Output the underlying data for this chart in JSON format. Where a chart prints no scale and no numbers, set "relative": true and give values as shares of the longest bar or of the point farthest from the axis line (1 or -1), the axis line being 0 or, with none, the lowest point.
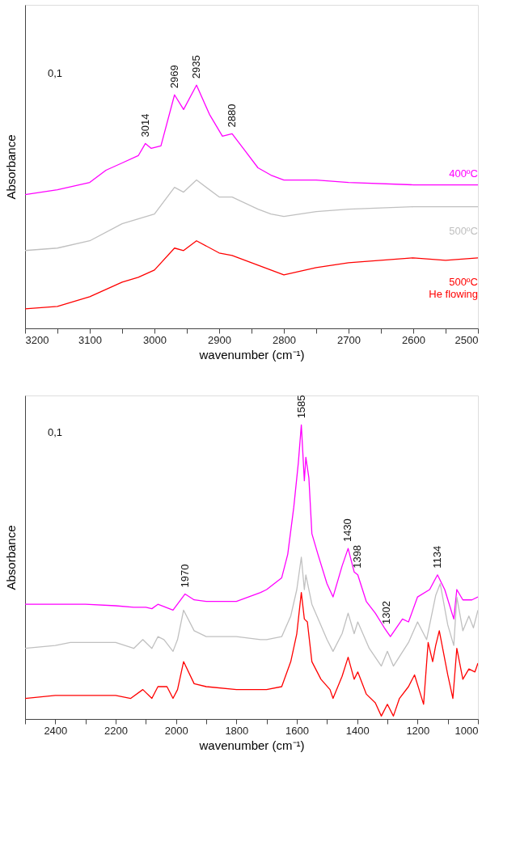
{
  "chart_data": [
    {
      "type": "line",
      "relative": true,
      "xlabel": "wavenumber (cm⁻¹)",
      "ylabel": "Absorbance",
      "tick_labels": "x",
      "grid": false,
      "xlim": [
        3200,
        2500
      ],
      "xticks": [
        3200,
        {
          "value": 3150,
          "label": null
        },
        3100,
        {
          "value": 3050,
          "label": null
        },
        3000,
        {
          "value": 2950,
          "label": null
        },
        2900,
        {
          "value": 2850,
          "label": null
        },
        2800,
        {
          "value": 2750,
          "label": null
        },
        2700,
        {
          "value": 2650,
          "label": null
        },
        2600,
        {
          "value": 2550,
          "label": null
        },
        2500
      ],
      "series": [
        {
          "name": "400ºC",
          "color": "#ff00ff",
          "x": [
            3200,
            3150,
            3100,
            3075,
            3050,
            3025,
            3014,
            3005,
            2990,
            2969,
            2955,
            2935,
            2915,
            2895,
            2880,
            2860,
            2840,
            2820,
            2800,
            2750,
            2700,
            2600,
            2550,
            2500
          ],
          "values": [
            0.55,
            0.57,
            0.6,
            0.65,
            0.68,
            0.71,
            0.76,
            0.74,
            0.75,
            0.96,
            0.9,
            1.0,
            0.88,
            0.79,
            0.8,
            0.73,
            0.66,
            0.63,
            0.61,
            0.61,
            0.6,
            0.59,
            0.59,
            0.59
          ]
        },
        {
          "name": "500ºC",
          "color": "#c0c0c0",
          "x": [
            3200,
            3150,
            3100,
            3050,
            3000,
            2969,
            2955,
            2935,
            2900,
            2880,
            2840,
            2820,
            2800,
            2750,
            2700,
            2600,
            2550,
            2500
          ],
          "values": [
            0.32,
            0.33,
            0.36,
            0.43,
            0.47,
            0.58,
            0.56,
            0.61,
            0.54,
            0.54,
            0.49,
            0.47,
            0.46,
            0.48,
            0.49,
            0.5,
            0.5,
            0.5
          ]
        },
        {
          "name": "500ºC\nHe flowing",
          "color": "#ff0000",
          "x": [
            3200,
            3150,
            3100,
            3050,
            3025,
            3000,
            2969,
            2955,
            2935,
            2900,
            2880,
            2840,
            2820,
            2800,
            2750,
            2700,
            2600,
            2550,
            2500
          ],
          "values": [
            0.08,
            0.09,
            0.13,
            0.19,
            0.21,
            0.24,
            0.33,
            0.32,
            0.36,
            0.31,
            0.3,
            0.26,
            0.24,
            0.22,
            0.25,
            0.27,
            0.29,
            0.28,
            0.29
          ]
        }
      ],
      "annotations": [
        "0,1",
        {
          "text": "3014",
          "x": 3014,
          "y": 0.76
        },
        {
          "text": "2969",
          "x": 2969,
          "y": 0.96
        },
        {
          "text": "2935",
          "x": 2935,
          "y": 1.0
        },
        {
          "text": "2880",
          "x": 2880,
          "y": 0.8
        }
      ]
    },
    {
      "type": "line",
      "relative": true,
      "xlabel": "wavenumber (cm⁻¹)",
      "ylabel": "Absorbance",
      "tick_labels": "x",
      "grid": false,
      "xlim": [
        2500,
        1000
      ],
      "xticks": [
        {
          "value": 2500,
          "label": null
        },
        2400,
        {
          "value": 2300,
          "label": null
        },
        2200,
        {
          "value": 2100,
          "label": null
        },
        2000,
        {
          "value": 1900,
          "label": null
        },
        1800,
        {
          "value": 1700,
          "label": null
        },
        1600,
        {
          "value": 1500,
          "label": null
        },
        1400,
        {
          "value": 1300,
          "label": null
        },
        1200,
        {
          "value": 1100,
          "label": null
        },
        1000
      ],
      "series": [
        {
          "color": "#ff00ff",
          "x": [
            2500,
            2400,
            2300,
            2200,
            2140,
            2100,
            2080,
            2060,
            2010,
            1970,
            1940,
            1900,
            1800,
            1720,
            1700,
            1650,
            1630,
            1610,
            1595,
            1585,
            1575,
            1570,
            1560,
            1550,
            1530,
            1500,
            1480,
            1450,
            1430,
            1410,
            1398,
            1370,
            1340,
            1310,
            1290,
            1250,
            1230,
            1200,
            1160,
            1134,
            1110,
            1080,
            1070,
            1050,
            1020,
            1000
          ],
          "values": [
            0.39,
            0.39,
            0.39,
            0.385,
            0.38,
            0.38,
            0.375,
            0.39,
            0.37,
            0.425,
            0.405,
            0.4,
            0.4,
            0.43,
            0.44,
            0.48,
            0.56,
            0.72,
            0.87,
            1.0,
            0.81,
            0.89,
            0.82,
            0.63,
            0.56,
            0.46,
            0.415,
            0.52,
            0.58,
            0.5,
            0.49,
            0.4,
            0.36,
            0.31,
            0.28,
            0.34,
            0.33,
            0.415,
            0.44,
            0.49,
            0.44,
            0.34,
            0.44,
            0.405,
            0.405,
            0.415
          ]
        },
        {
          "color": "#c0c0c0",
          "x": [
            2500,
            2400,
            2350,
            2300,
            2200,
            2140,
            2110,
            2080,
            2060,
            2040,
            2010,
            1995,
            1975,
            1940,
            1900,
            1800,
            1720,
            1700,
            1650,
            1620,
            1600,
            1585,
            1575,
            1570,
            1550,
            1500,
            1480,
            1450,
            1430,
            1410,
            1398,
            1360,
            1320,
            1300,
            1280,
            1230,
            1200,
            1170,
            1140,
            1125,
            1100,
            1080,
            1070,
            1050,
            1030,
            1015,
            1000
          ],
          "values": [
            0.24,
            0.25,
            0.26,
            0.26,
            0.26,
            0.24,
            0.27,
            0.24,
            0.28,
            0.27,
            0.23,
            0.27,
            0.37,
            0.3,
            0.28,
            0.28,
            0.27,
            0.27,
            0.28,
            0.35,
            0.44,
            0.55,
            0.44,
            0.49,
            0.39,
            0.27,
            0.23,
            0.29,
            0.36,
            0.29,
            0.33,
            0.24,
            0.18,
            0.23,
            0.18,
            0.26,
            0.33,
            0.27,
            0.42,
            0.46,
            0.32,
            0.25,
            0.415,
            0.3,
            0.35,
            0.31,
            0.37
          ]
        },
        {
          "color": "#ff0000",
          "x": [
            2500,
            2400,
            2300,
            2200,
            2150,
            2110,
            2080,
            2060,
            2030,
            2010,
            1995,
            1975,
            1940,
            1900,
            1800,
            1720,
            1700,
            1650,
            1620,
            1600,
            1585,
            1575,
            1565,
            1550,
            1520,
            1490,
            1480,
            1450,
            1430,
            1410,
            1398,
            1370,
            1340,
            1320,
            1300,
            1280,
            1260,
            1230,
            1210,
            1195,
            1180,
            1165,
            1150,
            1140,
            1128,
            1100,
            1083,
            1070,
            1050,
            1030,
            1010,
            1000
          ],
          "values": [
            0.07,
            0.08,
            0.08,
            0.08,
            0.07,
            0.1,
            0.07,
            0.11,
            0.11,
            0.07,
            0.1,
            0.195,
            0.12,
            0.11,
            0.1,
            0.1,
            0.1,
            0.11,
            0.195,
            0.29,
            0.43,
            0.34,
            0.33,
            0.195,
            0.135,
            0.1,
            0.07,
            0.145,
            0.21,
            0.135,
            0.16,
            0.085,
            0.055,
            0.01,
            0.05,
            0.01,
            0.07,
            0.11,
            0.15,
            0.1,
            0.05,
            0.26,
            0.195,
            0.25,
            0.3,
            0.15,
            0.07,
            0.24,
            0.135,
            0.17,
            0.16,
            0.19
          ]
        }
      ],
      "annotations": [
        "0,1",
        {
          "text": "1970",
          "x": 1970,
          "y": 0.425
        },
        {
          "text": "1585",
          "x": 1585,
          "y": 1.0
        },
        {
          "text": "1430",
          "x": 1430,
          "y": 0.58
        },
        {
          "text": "1398",
          "x": 1398,
          "y": 0.49
        },
        {
          "text": "1302",
          "x": 1302,
          "y": 0.3
        },
        {
          "text": "1134",
          "x": 1134,
          "y": 0.49
        }
      ]
    }
  ]
}
